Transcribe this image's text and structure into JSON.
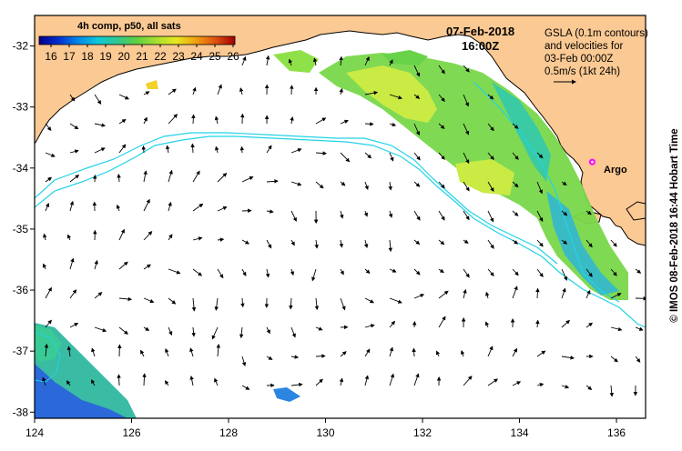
{
  "colorbar": {
    "title": "4h comp, p50, all sats",
    "ticks": [
      "16",
      "17",
      "18",
      "19",
      "20",
      "21",
      "22",
      "23",
      "24",
      "25",
      "26"
    ],
    "colors": [
      "#00008b",
      "#0030d0",
      "#0088e8",
      "#10c8d8",
      "#30c890",
      "#60d040",
      "#a8e030",
      "#e8e820",
      "#f0a010",
      "#e05010",
      "#a00000"
    ]
  },
  "timestamp": {
    "date": "07-Feb-2018",
    "time": "16:00Z"
  },
  "legend_info": {
    "line1": "GSLA (0.1m contours)",
    "line2": "and velocities for",
    "line3": "03-Feb 00:00Z",
    "line4": "0.5m/s (1kt 24h)"
  },
  "credit": "© IMOS 08-Feb-2018 16:44 Hobart Time",
  "axes": {
    "x_ticks": [
      "124",
      "126",
      "128",
      "130",
      "132",
      "134",
      "136"
    ],
    "y_ticks": [
      "-32",
      "-33",
      "-34",
      "-35",
      "-36",
      "-37",
      "-38"
    ]
  },
  "argo": {
    "label": "Argo",
    "lon": 135.5,
    "lat": -33.9
  },
  "colors": {
    "land": "#fbc993",
    "ocean": "#ffffff",
    "contour": "#22d3e6",
    "argo": "#ff00ff"
  }
}
